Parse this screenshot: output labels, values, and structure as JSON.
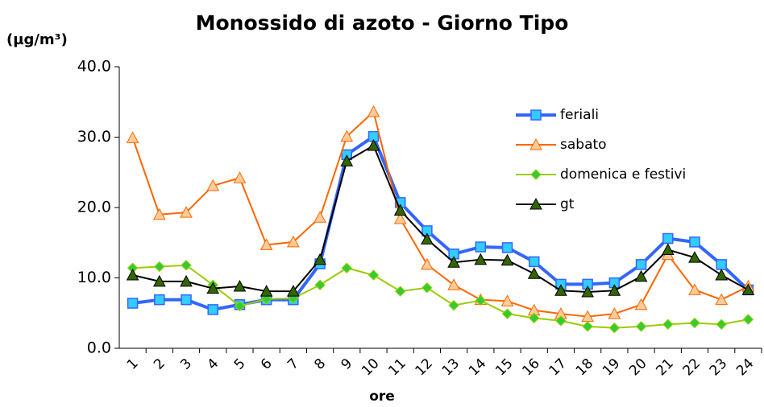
{
  "chart_data": {
    "type": "line",
    "title": "Monossido di azoto - Giorno Tipo",
    "y_label": "(µg/m³)",
    "x_label": "ore",
    "categories": [
      "1",
      "2",
      "3",
      "4",
      "5",
      "6",
      "7",
      "8",
      "9",
      "10",
      "11",
      "12",
      "13",
      "14",
      "15",
      "16",
      "17",
      "18",
      "19",
      "20",
      "21",
      "22",
      "23",
      "24"
    ],
    "series": [
      {
        "name": "feriali",
        "color": "#3366ff",
        "marker_color": "#33ccff",
        "marker": "square",
        "line_width": 4,
        "values": [
          6.4,
          6.9,
          6.9,
          5.5,
          6.2,
          6.9,
          6.9,
          12.0,
          27.5,
          30.1,
          20.7,
          16.7,
          13.4,
          14.4,
          14.3,
          12.3,
          9.1,
          9.1,
          9.3,
          11.9,
          15.6,
          15.1,
          11.9,
          8.3
        ]
      },
      {
        "name": "sabato",
        "color": "#ff6600",
        "marker_color": "#ffcc99",
        "marker": "triangle",
        "line_width": 2,
        "values": [
          29.9,
          19.0,
          19.3,
          23.1,
          24.2,
          14.7,
          15.1,
          18.6,
          30.1,
          33.6,
          18.4,
          11.9,
          9.0,
          6.9,
          6.7,
          5.4,
          4.9,
          4.5,
          4.9,
          6.2,
          13.3,
          8.3,
          6.9,
          8.8
        ]
      },
      {
        "name": "domenica e festivi",
        "color": "#99cc00",
        "marker_color": "#33cc33",
        "marker": "diamond",
        "line_width": 2,
        "values": [
          11.4,
          11.6,
          11.8,
          9.0,
          6.0,
          7.0,
          7.1,
          9.0,
          11.4,
          10.4,
          8.1,
          8.6,
          6.1,
          6.8,
          4.9,
          4.3,
          3.9,
          3.1,
          2.9,
          3.1,
          3.4,
          3.6,
          3.4,
          4.1
        ]
      },
      {
        "name": "gt",
        "color": "#000000",
        "marker_color": "#336600",
        "marker": "triangle",
        "line_width": 2,
        "values": [
          10.4,
          9.5,
          9.5,
          8.5,
          8.8,
          8.1,
          8.1,
          12.6,
          26.6,
          28.8,
          19.6,
          15.5,
          12.2,
          12.6,
          12.5,
          10.6,
          8.2,
          8.0,
          8.2,
          10.2,
          14.0,
          12.9,
          10.4,
          8.3
        ]
      }
    ],
    "ylim": [
      0,
      40
    ],
    "yticks": [
      {
        "value": 0,
        "label": "0.0"
      },
      {
        "value": 10,
        "label": "10.0"
      },
      {
        "value": 20,
        "label": "20.0"
      },
      {
        "value": 30,
        "label": "30.0"
      },
      {
        "value": 40,
        "label": "40.0"
      }
    ],
    "grid": false,
    "legend": "top-right"
  }
}
